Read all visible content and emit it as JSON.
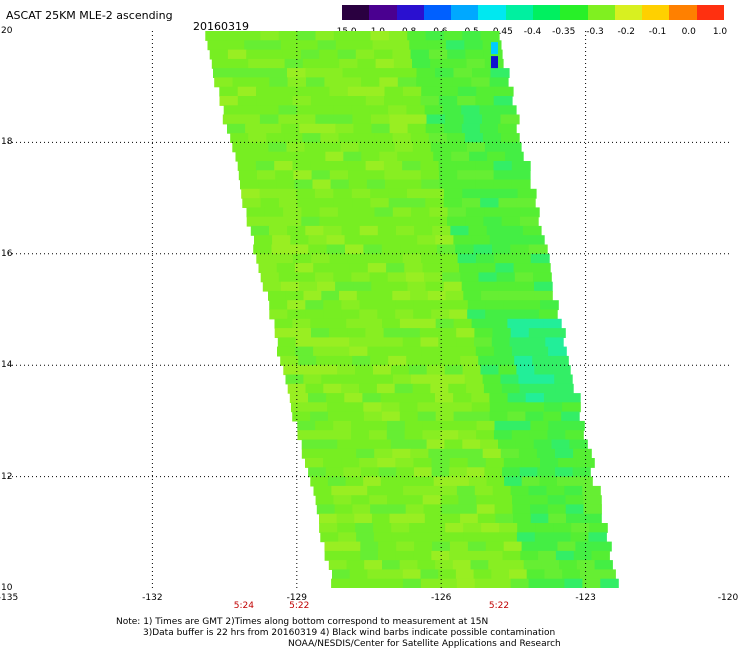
{
  "header": {
    "title": "ASCAT 25KM MLE-2 ascending",
    "date": "20160319"
  },
  "colorbar": {
    "colors": [
      "#2a0040",
      "#4a0090",
      "#2a10d0",
      "#0060ff",
      "#00a8ff",
      "#00e8f0",
      "#00f0a0",
      "#00f060",
      "#28f028",
      "#80f020",
      "#d8f020",
      "#ffd000",
      "#ff8000",
      "#ff3010"
    ],
    "labels": [
      "-15.0",
      "-1.0",
      "-0.8",
      "-0.6",
      "-0.5",
      "-0.45",
      "-0.4",
      "-0.35",
      "-0.3",
      "-0.2",
      "-0.1",
      "0.0",
      "1.0"
    ]
  },
  "map": {
    "lon_range": [
      -135,
      -120
    ],
    "lat_range": [
      10,
      20
    ],
    "x_ticks": [
      {
        "value": -135,
        "label": "-135"
      },
      {
        "value": -132,
        "label": "-132"
      },
      {
        "value": -129,
        "label": "-129"
      },
      {
        "value": -126,
        "label": "-126"
      },
      {
        "value": -123,
        "label": "-123"
      },
      {
        "value": -120,
        "label": "-120"
      }
    ],
    "y_ticks": [
      {
        "value": 20,
        "label": "20"
      },
      {
        "value": 18,
        "label": "18"
      },
      {
        "value": 16,
        "label": "16"
      },
      {
        "value": 14,
        "label": "14"
      },
      {
        "value": 12,
        "label": "12"
      },
      {
        "value": 10,
        "label": "10"
      }
    ],
    "times": [
      {
        "lon": -130.1,
        "label": "5:24"
      },
      {
        "lon": -128.95,
        "label": "5:22"
      },
      {
        "lon": -124.8,
        "label": "5:22"
      }
    ],
    "swath": {
      "top_left_lon": -130.9,
      "top_right_lon": -124.8,
      "bottom_left_lon": -128.2,
      "bottom_right_lon": -122.3,
      "base_color": "#88ee22",
      "patch_colors": [
        "#77ee22",
        "#66ee33",
        "#55ee33",
        "#44ee44",
        "#33ee66",
        "#22ee99",
        "#99ee22"
      ]
    }
  },
  "notes": {
    "line1": "Note: 1) Times are GMT 2)Times along bottom correspond to measurement at 15N",
    "line2": "3)Data buffer is 22 hrs from 20160319 4) Black wind barbs indicate possible contamination",
    "line3": "NOAA/NESDIS/Center for Satellite Applications and Research"
  }
}
